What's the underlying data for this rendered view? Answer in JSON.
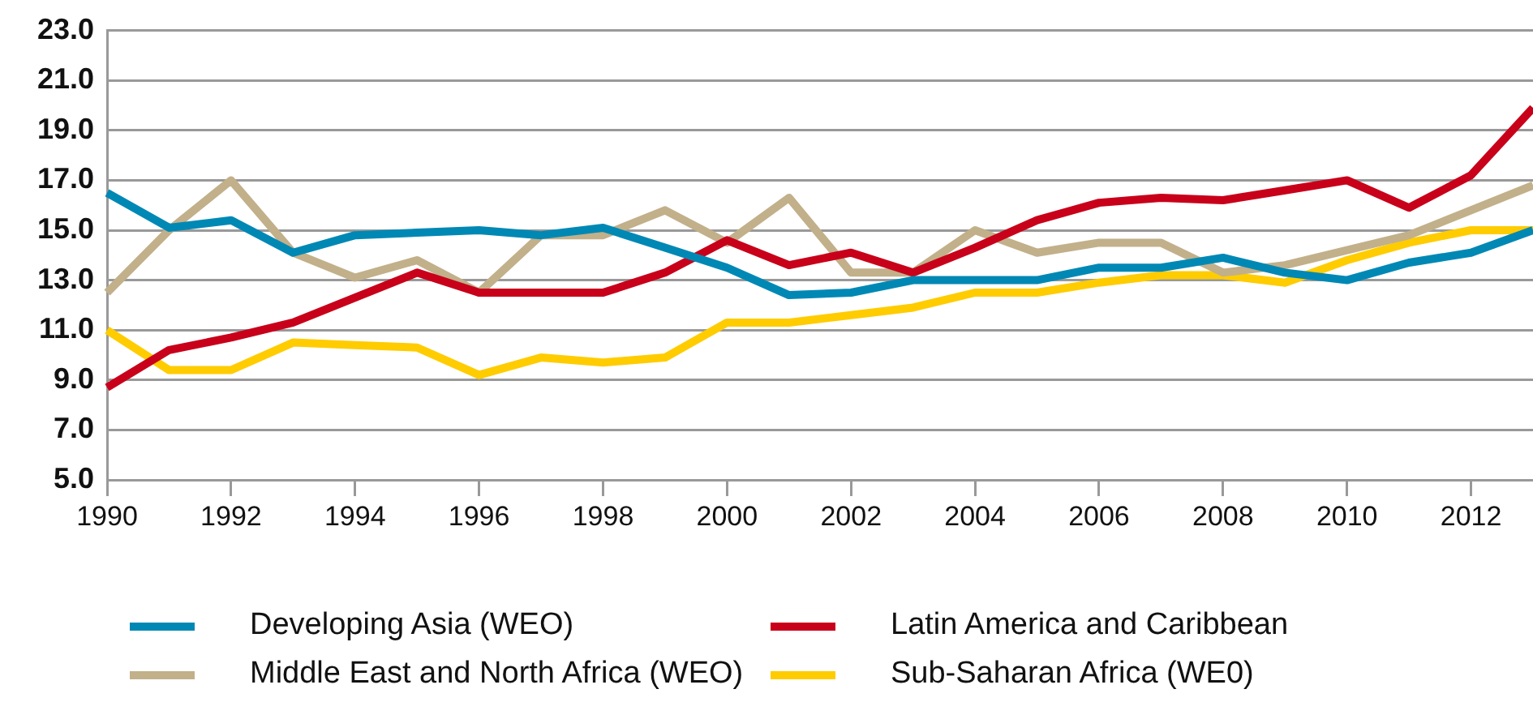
{
  "chart_data": {
    "type": "line",
    "x": [
      1990,
      1991,
      1992,
      1993,
      1994,
      1995,
      1996,
      1997,
      1998,
      1999,
      2000,
      2001,
      2002,
      2003,
      2004,
      2005,
      2006,
      2007,
      2008,
      2009,
      2010,
      2011,
      2012,
      2013
    ],
    "series": [
      {
        "name": "Developing Asia (WEO)",
        "color": "#0088b5",
        "values": [
          16.5,
          15.1,
          15.4,
          14.1,
          14.8,
          14.9,
          15.0,
          14.8,
          15.1,
          14.3,
          13.5,
          12.4,
          12.5,
          13.0,
          13.0,
          13.0,
          13.5,
          13.5,
          13.9,
          13.3,
          13.0,
          13.7,
          14.1,
          15.0
        ]
      },
      {
        "name": "Latin America and Caribbean",
        "color": "#c8001a",
        "values": [
          8.7,
          10.2,
          10.7,
          11.3,
          12.3,
          13.3,
          12.5,
          12.5,
          12.5,
          13.3,
          14.6,
          13.6,
          14.1,
          13.3,
          14.3,
          15.4,
          16.1,
          16.3,
          16.2,
          16.6,
          17.0,
          15.9,
          17.2,
          19.9
        ]
      },
      {
        "name": "Middle East and North Africa (WEO)",
        "color": "#c2b08a",
        "values": [
          12.5,
          15.0,
          17.0,
          14.1,
          13.1,
          13.8,
          12.5,
          14.8,
          14.8,
          15.8,
          14.5,
          16.3,
          13.3,
          13.3,
          15.0,
          14.1,
          14.5,
          14.5,
          13.3,
          13.6,
          14.2,
          14.8,
          15.8,
          16.8
        ]
      },
      {
        "name": "Sub-Saharan Africa (WE0)",
        "color": "#ffcc00",
        "values": [
          11.0,
          9.4,
          9.4,
          10.5,
          10.4,
          10.3,
          9.2,
          9.9,
          9.7,
          9.9,
          11.3,
          11.3,
          11.6,
          11.9,
          12.5,
          12.5,
          12.9,
          13.2,
          13.2,
          12.9,
          13.8,
          14.5,
          15.0,
          15.0
        ]
      }
    ],
    "xlim": [
      1990,
      2013
    ],
    "xticks": [
      1990,
      1992,
      1994,
      1996,
      1998,
      2000,
      2002,
      2004,
      2006,
      2008,
      2010,
      2012
    ],
    "ylim": [
      5,
      23
    ],
    "yticks": [
      {
        "value": 5,
        "label": "5.0"
      },
      {
        "value": 7,
        "label": "7.0"
      },
      {
        "value": 9,
        "label": "9.0"
      },
      {
        "value": 11,
        "label": "11.0"
      },
      {
        "value": 13,
        "label": "13.0"
      },
      {
        "value": 15,
        "label": "15.0"
      },
      {
        "value": 17,
        "label": "17.0"
      },
      {
        "value": 19,
        "label": "19.0"
      },
      {
        "value": 21,
        "label": "21.0"
      },
      {
        "value": 23,
        "label": "23.0"
      }
    ],
    "grid": "y",
    "legend": "bottom",
    "marker": "none",
    "line_style": "solid"
  }
}
